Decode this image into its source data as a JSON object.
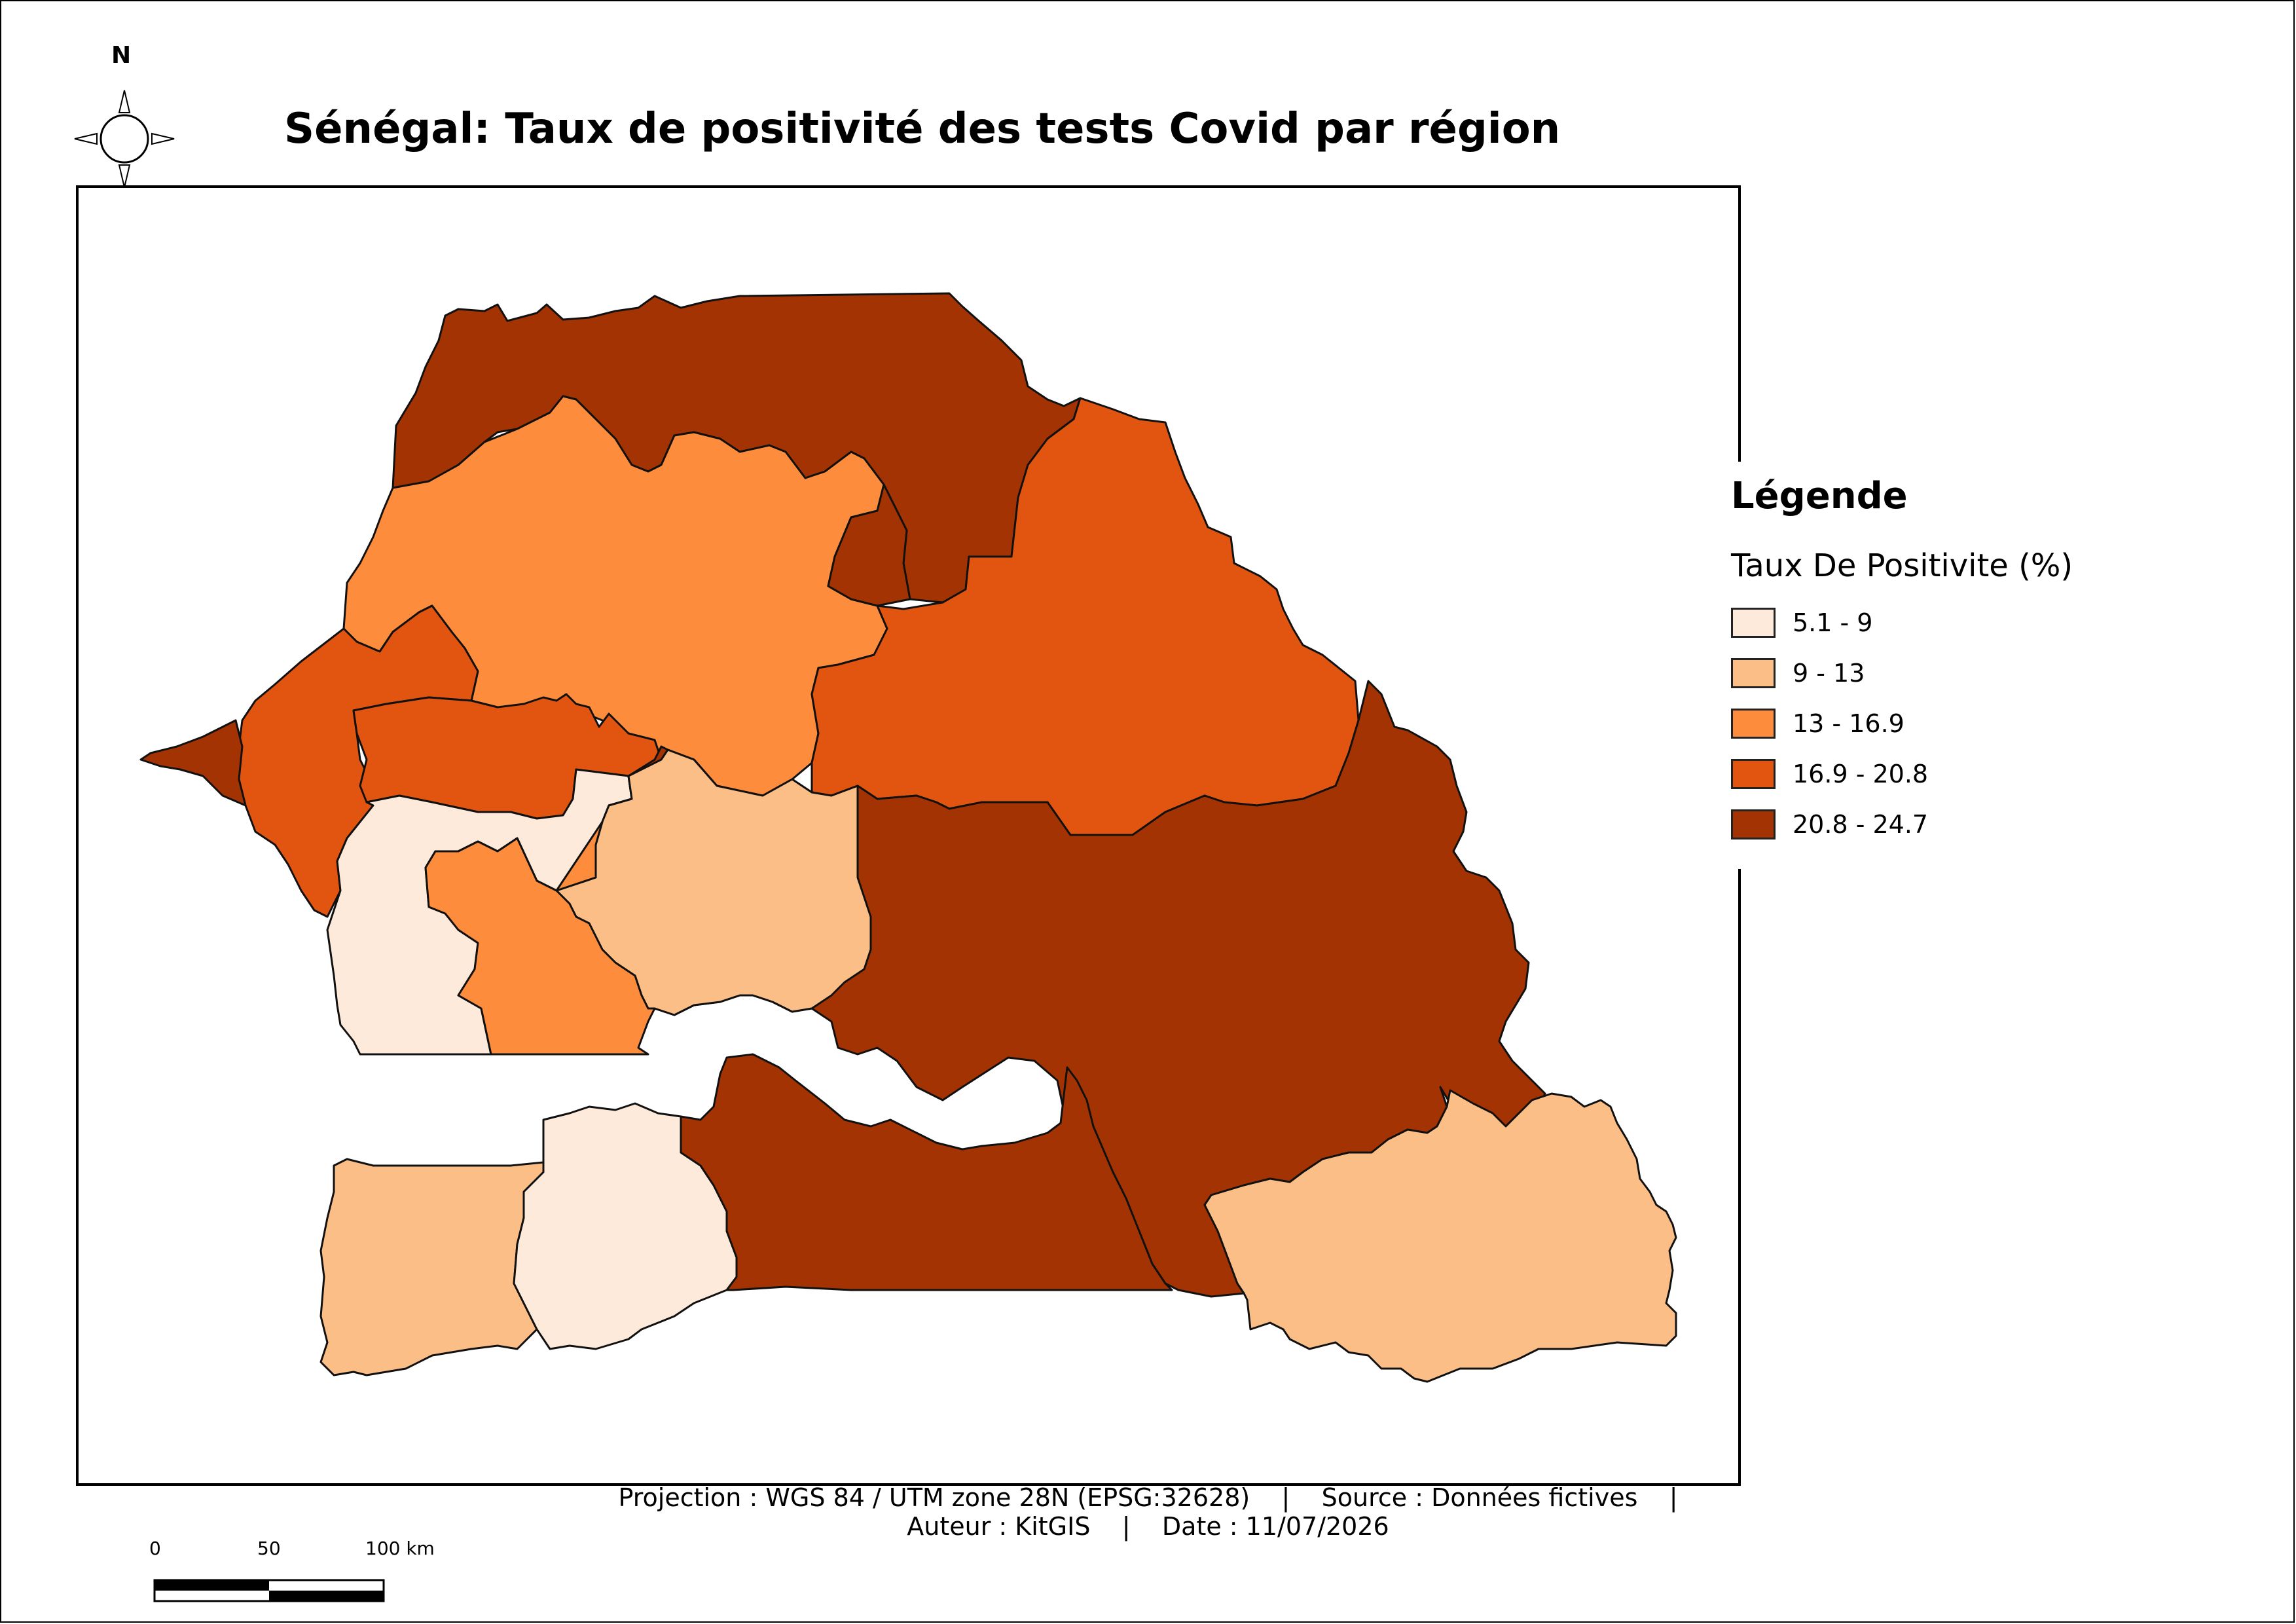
{
  "title": "Sénégal: Taux de positivité des tests Covid par région",
  "north_arrow": {
    "letter": "N",
    "icon": "compass-rose-icon"
  },
  "legend": {
    "title": "Légende",
    "subtitle": "Taux De Positivite (%)",
    "classes": [
      {
        "label": "5.1 - 9",
        "color": "#feeadb"
      },
      {
        "label": "9 - 13",
        "color": "#fcbe87"
      },
      {
        "label": "13 - 16.9",
        "color": "#fd8c3d"
      },
      {
        "label": "16.9 - 20.8",
        "color": "#e25511"
      },
      {
        "label": "20.8 - 24.7",
        "color": "#a33303"
      }
    ]
  },
  "footer": {
    "line1": "Projection : WGS 84 / UTM zone 28N (EPSG:32628)    |    Source : Données fictives    |",
    "line2": "Auteur : KitGIS    |    Date : 11/07/2026"
  },
  "scale_bar": {
    "labels": [
      "0",
      "50",
      "100 km"
    ]
  },
  "regions": [
    {
      "class": 4
    },
    {
      "class": 2
    },
    {
      "class": 3
    },
    {
      "class": 4
    },
    {
      "class": 3
    },
    {
      "class": 4
    },
    {
      "class": 3
    },
    {
      "class": 0
    },
    {
      "class": 4
    },
    {
      "class": 1
    },
    {
      "class": 2
    },
    {
      "class": 1
    },
    {
      "class": 0
    },
    {
      "class": 4
    },
    {
      "class": 1
    }
  ]
}
